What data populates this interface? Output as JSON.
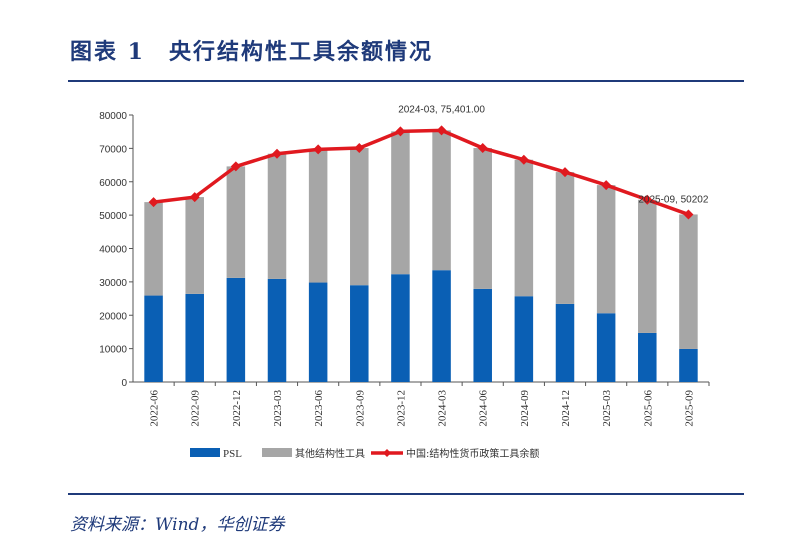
{
  "title": "图表 1　央行结构性工具余额情况",
  "source": "资料来源：Wind，华创证券",
  "chart_data": {
    "type": "bar",
    "stacked": true,
    "categories": [
      "2022-06",
      "2022-09",
      "2022-12",
      "2023-03",
      "2023-06",
      "2023-09",
      "2023-12",
      "2024-03",
      "2024-06",
      "2024-09",
      "2024-12",
      "2025-03",
      "2025-06",
      "2025-09"
    ],
    "series": [
      {
        "name": "PSL",
        "type": "bar",
        "color": "#0a5fb4",
        "values": [
          25900,
          26400,
          31200,
          30900,
          29800,
          29000,
          32300,
          33500,
          27900,
          25700,
          23400,
          20600,
          14700,
          9900
        ]
      },
      {
        "name": "其他结构性工具",
        "type": "bar",
        "color": "#a6a6a6",
        "values": [
          28000,
          29000,
          33400,
          37500,
          39900,
          41100,
          42800,
          41901,
          42200,
          40900,
          39500,
          38400,
          39900,
          40302
        ]
      },
      {
        "name": "中国:结构性货币政策工具余额",
        "type": "line",
        "color": "#e0191f",
        "values": [
          53900,
          55400,
          64600,
          68400,
          69700,
          70100,
          75100,
          75401,
          70100,
          66600,
          62900,
          59000,
          54600,
          50202
        ]
      }
    ],
    "annotations": [
      "2024-03, 75,401.00",
      "2025-09, 50202"
    ],
    "yticks": [
      "0",
      "10000",
      "20000",
      "30000",
      "40000",
      "50000",
      "60000",
      "70000",
      "80000"
    ],
    "ylim": [
      0,
      80000
    ],
    "grid": false,
    "legend": "bottom"
  }
}
